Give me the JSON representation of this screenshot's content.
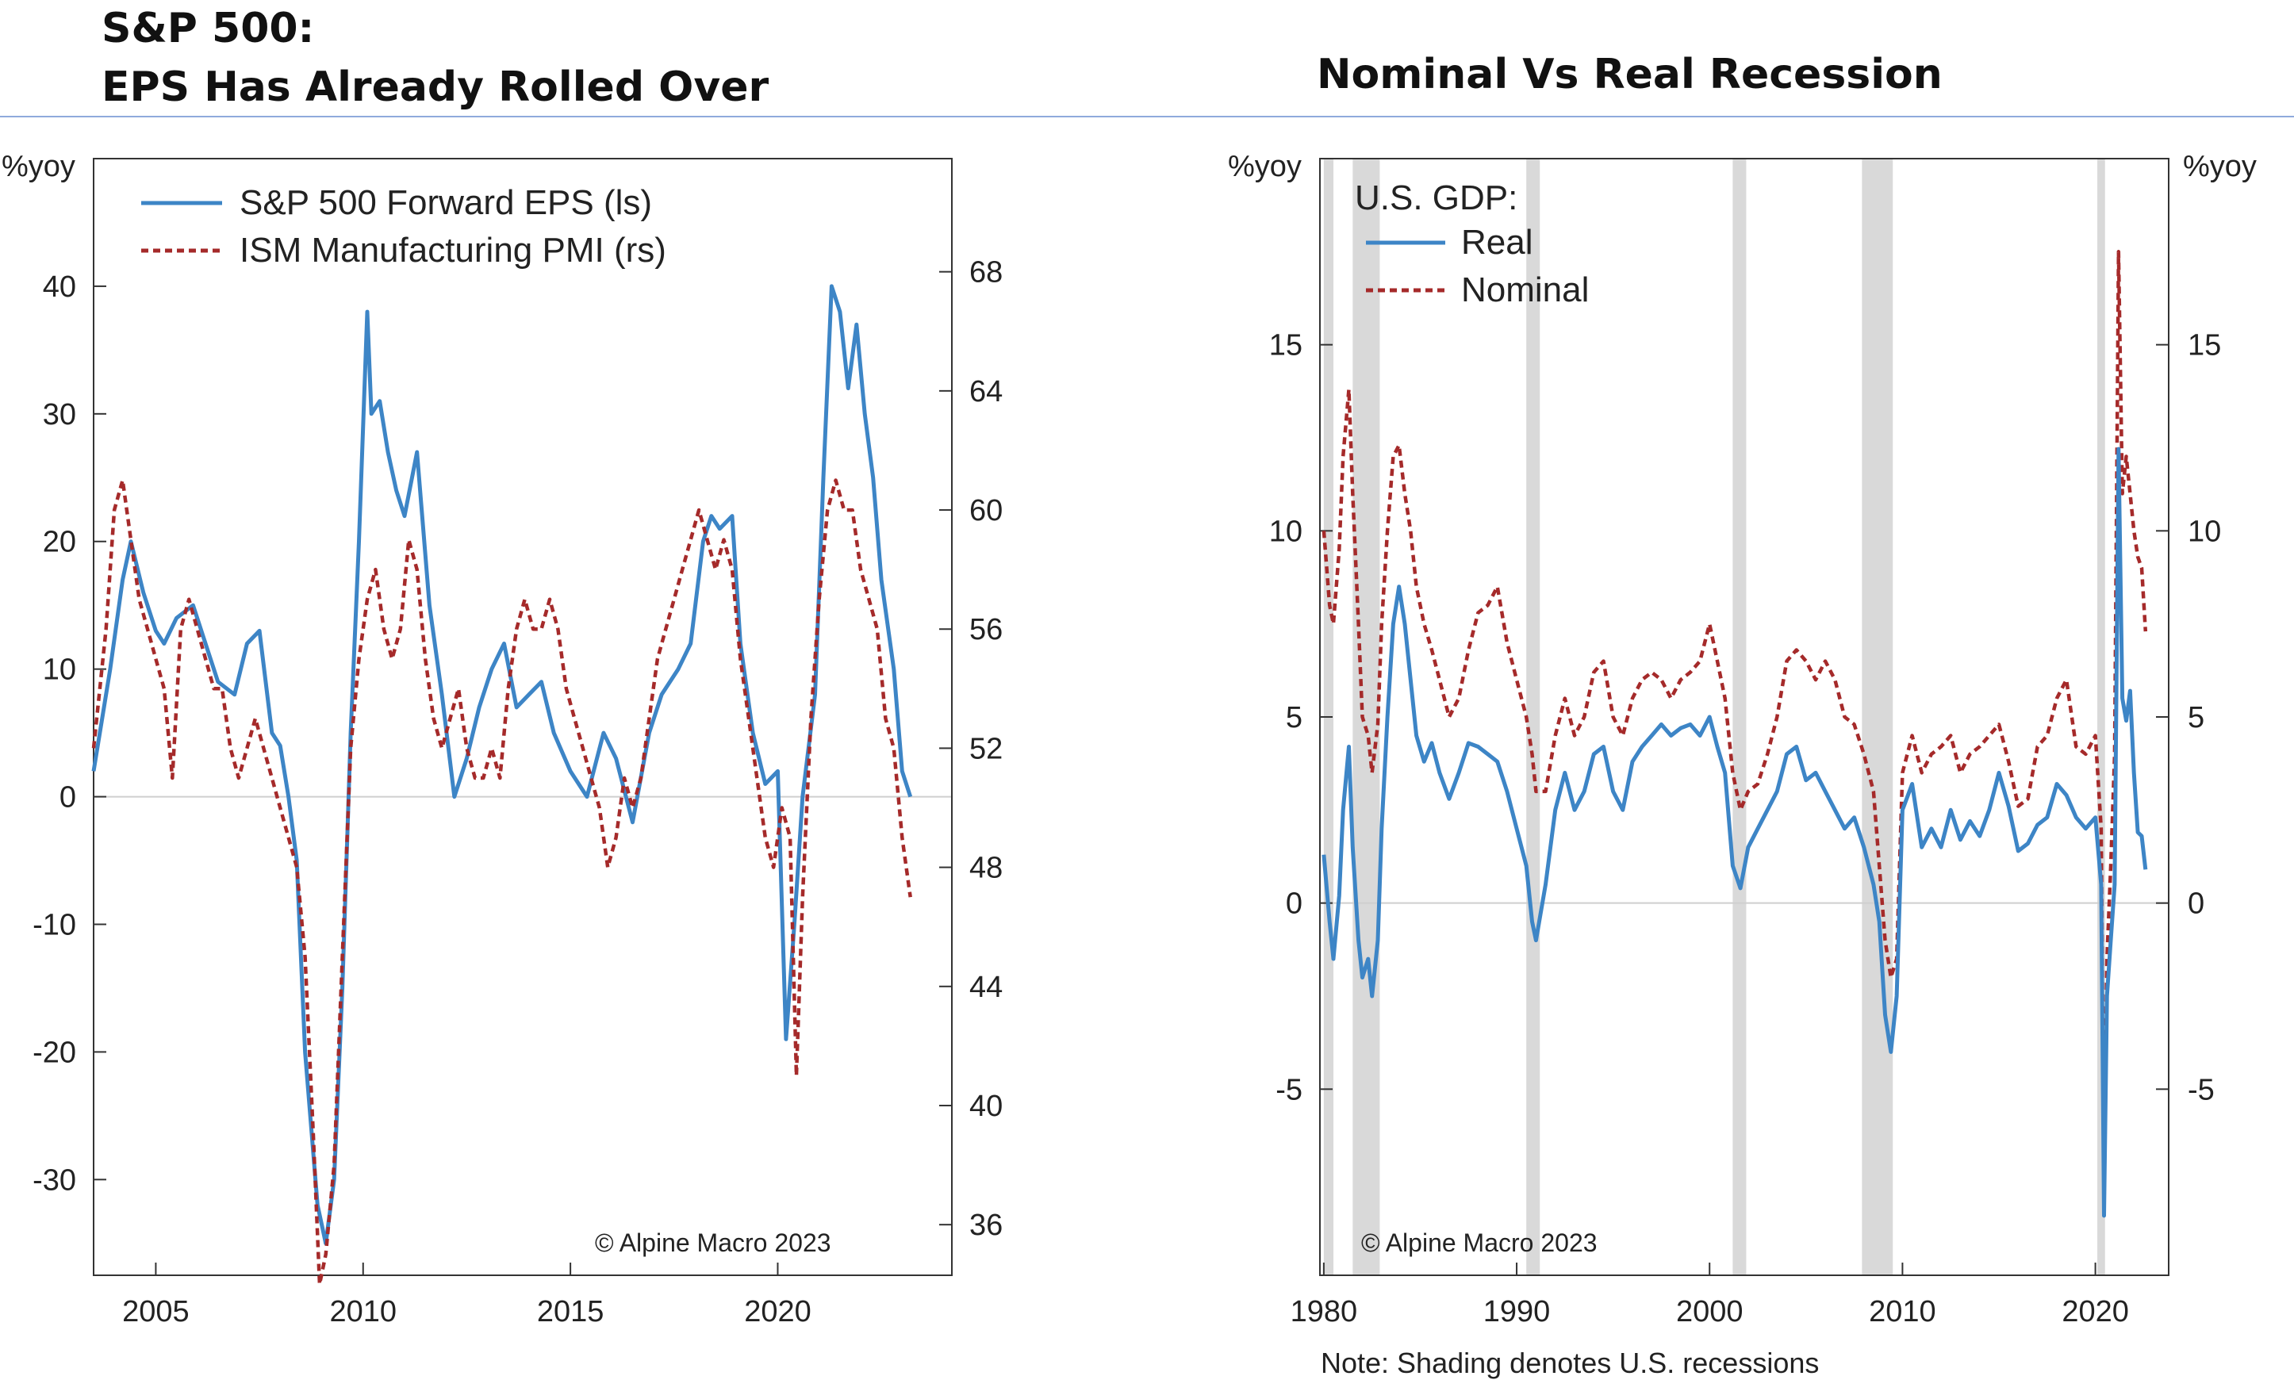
{
  "titles": {
    "left_line1": "S&P 500:",
    "left_line2": "EPS Has Already Rolled Over",
    "right": "Nominal Vs Real Recession"
  },
  "footnote": "Note: Shading denotes U.S. recessions",
  "colors": {
    "eps": "#3d85c6",
    "ism": "#a52a2a",
    "real": "#3d85c6",
    "nominal": "#a52a2a",
    "recession": "#d9d9d9",
    "title_rule": "#8faadc"
  },
  "chart_data": [
    {
      "type": "line",
      "title": "S&P 500: EPS Has Already Rolled Over",
      "xlabel": "",
      "ylabel_left": "%yoy",
      "xlim": [
        2003.5,
        2024.2
      ],
      "ylim_left": [
        -37.5,
        50
      ],
      "ylim_right": [
        34.3,
        71.8
      ],
      "x_ticks": [
        2005,
        2010,
        2015,
        2020
      ],
      "y_ticks_left": [
        40,
        30,
        20,
        10,
        0,
        -10,
        -20,
        -30
      ],
      "y_ticks_right": [
        68,
        64,
        60,
        56,
        52,
        48,
        44,
        40,
        36
      ],
      "legend": [
        "S&P 500 Forward EPS (ls)",
        "ISM Manufacturing PMI (rs)"
      ],
      "copyright": "© Alpine Macro 2023",
      "series": [
        {
          "name": "S&P 500 Forward EPS (ls)",
          "axis": "left",
          "style": "solid",
          "x": [
            2003.5,
            2003.9,
            2004.2,
            2004.4,
            2004.7,
            2005.0,
            2005.2,
            2005.5,
            2005.9,
            2006.2,
            2006.5,
            2006.9,
            2007.2,
            2007.5,
            2007.8,
            2008.0,
            2008.2,
            2008.4,
            2008.6,
            2008.9,
            2009.1,
            2009.3,
            2009.5,
            2009.7,
            2009.9,
            2010.1,
            2010.2,
            2010.4,
            2010.6,
            2010.8,
            2011.0,
            2011.3,
            2011.6,
            2011.9,
            2012.2,
            2012.5,
            2012.8,
            2013.1,
            2013.4,
            2013.7,
            2014.0,
            2014.3,
            2014.6,
            2015.0,
            2015.4,
            2015.8,
            2016.1,
            2016.5,
            2016.9,
            2017.2,
            2017.6,
            2017.9,
            2018.2,
            2018.4,
            2018.6,
            2018.9,
            2019.1,
            2019.4,
            2019.7,
            2020.0,
            2020.2,
            2020.4,
            2020.6,
            2020.9,
            2021.1,
            2021.3,
            2021.5,
            2021.7,
            2021.9,
            2022.1,
            2022.3,
            2022.5,
            2022.8,
            2023.0,
            2023.2
          ],
          "values": [
            2,
            10,
            17,
            20,
            16,
            13,
            12,
            14,
            15,
            12,
            9,
            8,
            12,
            13,
            5,
            4,
            0,
            -5,
            -20,
            -32,
            -35,
            -30,
            -15,
            5,
            20,
            38,
            30,
            31,
            27,
            24,
            22,
            27,
            15,
            8,
            0,
            3,
            7,
            10,
            12,
            7,
            8,
            9,
            5,
            2,
            0,
            5,
            3,
            -2,
            5,
            8,
            10,
            12,
            20,
            22,
            21,
            22,
            12,
            5,
            1,
            2,
            -19,
            -10,
            0,
            8,
            25,
            40,
            38,
            32,
            37,
            30,
            25,
            17,
            10,
            2,
            0
          ]
        },
        {
          "name": "ISM Manufacturing PMI (rs)",
          "axis": "right",
          "style": "dashed",
          "x": [
            2003.5,
            2003.8,
            2004.0,
            2004.2,
            2004.4,
            2004.6,
            2004.8,
            2005.0,
            2005.2,
            2005.4,
            2005.6,
            2005.8,
            2006.0,
            2006.2,
            2006.4,
            2006.6,
            2006.8,
            2007.0,
            2007.2,
            2007.4,
            2007.6,
            2007.8,
            2008.0,
            2008.2,
            2008.4,
            2008.6,
            2008.8,
            2008.95,
            2009.1,
            2009.3,
            2009.5,
            2009.7,
            2009.9,
            2010.1,
            2010.3,
            2010.5,
            2010.7,
            2010.9,
            2011.1,
            2011.3,
            2011.5,
            2011.7,
            2011.9,
            2012.1,
            2012.3,
            2012.5,
            2012.7,
            2012.9,
            2013.1,
            2013.3,
            2013.5,
            2013.7,
            2013.9,
            2014.1,
            2014.3,
            2014.5,
            2014.7,
            2014.9,
            2015.1,
            2015.3,
            2015.5,
            2015.7,
            2015.9,
            2016.1,
            2016.3,
            2016.5,
            2016.7,
            2016.9,
            2017.1,
            2017.3,
            2017.5,
            2017.7,
            2017.9,
            2018.1,
            2018.3,
            2018.5,
            2018.7,
            2018.9,
            2019.1,
            2019.3,
            2019.5,
            2019.7,
            2019.9,
            2020.1,
            2020.3,
            2020.45,
            2020.6,
            2020.8,
            2021.0,
            2021.2,
            2021.4,
            2021.6,
            2021.8,
            2022.0,
            2022.2,
            2022.4,
            2022.6,
            2022.8,
            2023.0,
            2023.2
          ],
          "values": [
            52,
            56,
            60,
            61,
            59,
            57,
            56,
            55,
            54,
            51,
            56,
            57,
            56,
            55,
            54,
            54,
            52,
            51,
            52,
            53,
            52,
            51,
            50,
            49,
            48,
            45,
            39,
            34,
            35,
            38,
            45,
            52,
            55,
            57,
            58,
            56,
            55,
            56,
            59,
            58,
            55,
            53,
            52,
            53,
            54,
            52,
            51,
            51,
            52,
            51,
            54,
            56,
            57,
            56,
            56,
            57,
            56,
            54,
            53,
            52,
            51,
            50,
            48,
            49,
            51,
            50,
            51,
            53,
            55,
            56,
            57,
            58,
            59,
            60,
            59,
            58,
            59,
            58,
            55,
            53,
            51,
            49,
            48,
            50,
            49,
            41,
            47,
            53,
            57,
            60,
            61,
            60,
            60,
            58,
            57,
            56,
            53,
            52,
            49,
            47
          ]
        }
      ]
    },
    {
      "type": "line",
      "title": "Nominal Vs Real Recession",
      "xlabel": "",
      "ylabel_left": "%yoy",
      "ylabel_right": "%yoy",
      "xlim": [
        1979.8,
        2023.8
      ],
      "ylim": [
        -10,
        20
      ],
      "x_ticks": [
        1980,
        1990,
        2000,
        2010,
        2020
      ],
      "y_ticks": [
        15,
        10,
        5,
        0,
        -5
      ],
      "legend_title": "U.S. GDP:",
      "legend": [
        "Real",
        "Nominal"
      ],
      "recessions": [
        [
          1980.0,
          1980.5
        ],
        [
          1981.5,
          1982.9
        ],
        [
          1990.5,
          1991.2
        ],
        [
          2001.2,
          2001.9
        ],
        [
          2007.9,
          2009.5
        ],
        [
          2020.1,
          2020.5
        ]
      ],
      "copyright": "© Alpine Macro 2023",
      "series": [
        {
          "name": "Real",
          "style": "solid",
          "x": [
            1980.0,
            1980.3,
            1980.5,
            1980.8,
            1981.0,
            1981.3,
            1981.5,
            1981.8,
            1982.0,
            1982.3,
            1982.5,
            1982.8,
            1983.0,
            1983.3,
            1983.6,
            1983.9,
            1984.2,
            1984.5,
            1984.8,
            1985.2,
            1985.6,
            1986.0,
            1986.5,
            1987.0,
            1987.5,
            1988.0,
            1988.5,
            1989.0,
            1989.5,
            1990.0,
            1990.5,
            1990.8,
            1991.0,
            1991.5,
            1992.0,
            1992.5,
            1993.0,
            1993.5,
            1994.0,
            1994.5,
            1995.0,
            1995.5,
            1996.0,
            1996.5,
            1997.0,
            1997.5,
            1998.0,
            1998.5,
            1999.0,
            1999.5,
            2000.0,
            2000.4,
            2000.8,
            2001.2,
            2001.6,
            2002.0,
            2002.5,
            2003.0,
            2003.5,
            2004.0,
            2004.5,
            2005.0,
            2005.5,
            2006.0,
            2006.5,
            2007.0,
            2007.5,
            2008.0,
            2008.5,
            2008.8,
            2009.1,
            2009.4,
            2009.7,
            2010.0,
            2010.5,
            2011.0,
            2011.5,
            2012.0,
            2012.5,
            2013.0,
            2013.5,
            2014.0,
            2014.5,
            2015.0,
            2015.5,
            2016.0,
            2016.5,
            2017.0,
            2017.5,
            2018.0,
            2018.5,
            2019.0,
            2019.5,
            2020.0,
            2020.3,
            2020.45,
            2020.6,
            2020.8,
            2021.0,
            2021.2,
            2021.4,
            2021.6,
            2021.8,
            2022.0,
            2022.2,
            2022.4,
            2022.6
          ],
          "values": [
            1.3,
            -0.5,
            -1.5,
            0.2,
            2.5,
            4.2,
            1.5,
            -1.0,
            -2.0,
            -1.5,
            -2.5,
            -1.0,
            2.0,
            5.0,
            7.5,
            8.5,
            7.5,
            6.0,
            4.5,
            3.8,
            4.3,
            3.5,
            2.8,
            3.5,
            4.3,
            4.2,
            4.0,
            3.8,
            3.0,
            2.0,
            1.0,
            -0.5,
            -1.0,
            0.5,
            2.5,
            3.5,
            2.5,
            3.0,
            4.0,
            4.2,
            3.0,
            2.5,
            3.8,
            4.2,
            4.5,
            4.8,
            4.5,
            4.7,
            4.8,
            4.5,
            5.0,
            4.2,
            3.5,
            1.0,
            0.4,
            1.5,
            2.0,
            2.5,
            3.0,
            4.0,
            4.2,
            3.3,
            3.5,
            3.0,
            2.5,
            2.0,
            2.3,
            1.5,
            0.5,
            -0.5,
            -3.0,
            -4.0,
            -2.5,
            2.5,
            3.2,
            1.5,
            2.0,
            1.5,
            2.5,
            1.7,
            2.2,
            1.8,
            2.5,
            3.5,
            2.6,
            1.4,
            1.6,
            2.1,
            2.3,
            3.2,
            2.9,
            2.3,
            2.0,
            2.3,
            0.5,
            -8.4,
            -2.5,
            -1.0,
            0.5,
            12.2,
            5.5,
            4.9,
            5.7,
            3.5,
            1.9,
            1.8,
            0.9
          ]
        },
        {
          "name": "Nominal",
          "style": "dashed",
          "x": [
            1980.0,
            1980.3,
            1980.5,
            1980.8,
            1981.0,
            1981.3,
            1981.5,
            1981.8,
            1982.0,
            1982.3,
            1982.5,
            1982.8,
            1983.0,
            1983.3,
            1983.6,
            1983.9,
            1984.2,
            1984.5,
            1984.8,
            1985.2,
            1985.6,
            1986.0,
            1986.5,
            1987.0,
            1987.5,
            1988.0,
            1988.5,
            1989.0,
            1989.5,
            1990.0,
            1990.5,
            1990.8,
            1991.0,
            1991.5,
            1992.0,
            1992.5,
            1993.0,
            1993.5,
            1994.0,
            1994.5,
            1995.0,
            1995.5,
            1996.0,
            1996.5,
            1997.0,
            1997.5,
            1998.0,
            1998.5,
            1999.0,
            1999.5,
            2000.0,
            2000.4,
            2000.8,
            2001.2,
            2001.6,
            2002.0,
            2002.5,
            2003.0,
            2003.5,
            2004.0,
            2004.5,
            2005.0,
            2005.5,
            2006.0,
            2006.5,
            2007.0,
            2007.5,
            2008.0,
            2008.5,
            2008.8,
            2009.1,
            2009.4,
            2009.7,
            2010.0,
            2010.5,
            2011.0,
            2011.5,
            2012.0,
            2012.5,
            2013.0,
            2013.5,
            2014.0,
            2014.5,
            2015.0,
            2015.5,
            2016.0,
            2016.5,
            2017.0,
            2017.5,
            2018.0,
            2018.5,
            2019.0,
            2019.5,
            2020.0,
            2020.3,
            2020.45,
            2020.6,
            2020.8,
            2021.0,
            2021.2,
            2021.4,
            2021.6,
            2021.8,
            2022.0,
            2022.2,
            2022.4,
            2022.6
          ],
          "values": [
            10.0,
            8.0,
            7.5,
            9.5,
            12.0,
            13.8,
            11.0,
            7.5,
            5.0,
            4.5,
            3.5,
            4.8,
            7.5,
            10.0,
            12.0,
            12.3,
            11.0,
            10.0,
            8.5,
            7.5,
            6.8,
            6.0,
            5.0,
            5.5,
            6.8,
            7.8,
            8.0,
            8.5,
            7.0,
            6.0,
            5.0,
            4.0,
            3.0,
            3.0,
            4.5,
            5.5,
            4.5,
            5.0,
            6.2,
            6.5,
            5.0,
            4.5,
            5.5,
            6.0,
            6.2,
            6.0,
            5.5,
            6.0,
            6.2,
            6.5,
            7.5,
            6.5,
            5.5,
            3.5,
            2.5,
            3.0,
            3.2,
            4.0,
            5.0,
            6.5,
            6.8,
            6.5,
            6.0,
            6.5,
            6.0,
            5.0,
            4.8,
            4.0,
            3.0,
            1.0,
            -1.0,
            -2.0,
            -1.5,
            3.5,
            4.5,
            3.5,
            4.0,
            4.2,
            4.5,
            3.5,
            4.0,
            4.2,
            4.5,
            4.8,
            3.8,
            2.6,
            2.8,
            4.2,
            4.5,
            5.5,
            6.0,
            4.2,
            4.0,
            4.5,
            2.0,
            -7.5,
            -1.5,
            1.0,
            4.0,
            17.5,
            11.0,
            12.0,
            11.0,
            10.0,
            9.3,
            9.0,
            7.3
          ]
        }
      ]
    }
  ]
}
